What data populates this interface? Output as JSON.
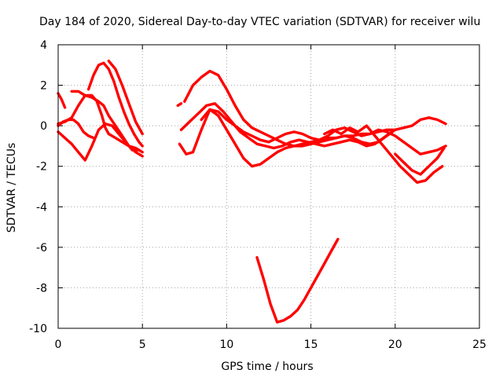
{
  "chart_data": {
    "type": "line",
    "title": "Day 184 of 2020, Sidereal Day-to-day VTEC variation (SDTVAR) for receiver wilu",
    "xlabel": "GPS time / hours",
    "ylabel": "SDTVAR / TECUs",
    "xlim": [
      0,
      25
    ],
    "ylim": [
      -10,
      4
    ],
    "xticks": [
      "0",
      "5",
      "10",
      "15",
      "20",
      "25"
    ],
    "yticks": [
      "4",
      "2",
      "0",
      "-2",
      "-4",
      "-6",
      "-8",
      "-10"
    ],
    "xtick_values": [
      0,
      5,
      10,
      15,
      20,
      25
    ],
    "ytick_values": [
      4,
      2,
      0,
      -2,
      -4,
      -6,
      -8,
      -10
    ],
    "grid": true,
    "color": "#ff0000",
    "series": [
      {
        "name": "s1",
        "x": [
          0.0,
          0.2,
          0.4
        ],
        "y": [
          1.6,
          1.3,
          0.9
        ]
      },
      {
        "name": "s2",
        "x": [
          0.0,
          0.4,
          0.8,
          1.2,
          1.6,
          2.0,
          2.3,
          2.6,
          2.8,
          3.0,
          3.4,
          3.8,
          4.2,
          4.6,
          5.0
        ],
        "y": [
          0.1,
          0.2,
          0.4,
          1.0,
          1.5,
          1.5,
          1.2,
          0.5,
          -0.1,
          -0.4,
          -0.6,
          -0.8,
          -1.0,
          -1.1,
          -1.3
        ]
      },
      {
        "name": "s3",
        "x": [
          0.0,
          0.4,
          0.8,
          1.2,
          1.6,
          2.0,
          2.4,
          2.8,
          3.2,
          3.6,
          4.0,
          4.4,
          4.8
        ],
        "y": [
          -0.3,
          -0.6,
          -0.9,
          -1.3,
          -1.7,
          -1.0,
          -0.2,
          0.1,
          0.0,
          -0.4,
          -0.8,
          -1.2,
          -1.2
        ]
      },
      {
        "name": "s4",
        "x": [
          0.0,
          0.3,
          0.6,
          0.9,
          1.2,
          1.5,
          1.8,
          2.1
        ],
        "y": [
          0.0,
          0.2,
          0.3,
          0.3,
          0.1,
          -0.3,
          -0.5,
          -0.6
        ]
      },
      {
        "name": "s5",
        "x": [
          0.8,
          1.2,
          1.6,
          2.0,
          2.4,
          2.7,
          3.0,
          3.4,
          3.8,
          4.2,
          4.6,
          5.0
        ],
        "y": [
          1.7,
          1.7,
          1.5,
          1.4,
          1.2,
          1.0,
          0.5,
          0.0,
          -0.5,
          -1.0,
          -1.3,
          -1.5
        ]
      },
      {
        "name": "s6",
        "x": [
          1.8,
          2.1,
          2.4,
          2.7,
          3.0,
          3.3,
          3.6,
          3.9,
          4.2,
          4.5,
          4.8,
          5.0
        ],
        "y": [
          1.8,
          2.5,
          3.0,
          3.1,
          2.8,
          2.2,
          1.4,
          0.7,
          0.1,
          -0.4,
          -0.8,
          -1.0
        ]
      },
      {
        "name": "s7",
        "x": [
          3.0,
          3.4,
          3.8,
          4.2,
          4.6,
          5.0
        ],
        "y": [
          3.2,
          2.8,
          2.0,
          1.1,
          0.2,
          -0.4
        ]
      },
      {
        "name": "s8",
        "x": [
          7.1,
          7.3
        ],
        "y": [
          1.0,
          1.1
        ]
      },
      {
        "name": "s9",
        "x": [
          7.5,
          8.0,
          8.5,
          9.0,
          9.5,
          10.0,
          10.5,
          11.0,
          11.5,
          12.0,
          12.5,
          13.0,
          13.5,
          14.0,
          14.5,
          15.0,
          15.5,
          16.0,
          16.5,
          17.0,
          17.5,
          18.0,
          18.5,
          19.0,
          19.5,
          20.0,
          20.5,
          21.0,
          21.5,
          22.0,
          22.5,
          23.0
        ],
        "y": [
          1.2,
          2.0,
          2.4,
          2.7,
          2.5,
          1.8,
          1.0,
          0.3,
          -0.1,
          -0.3,
          -0.5,
          -0.7,
          -0.9,
          -1.0,
          -1.0,
          -0.9,
          -0.8,
          -0.7,
          -0.6,
          -0.5,
          -0.5,
          -0.4,
          -0.4,
          -0.3,
          -0.2,
          -0.2,
          -0.1,
          0.0,
          0.3,
          0.4,
          0.3,
          0.1
        ]
      },
      {
        "name": "s10",
        "x": [
          7.2,
          7.6,
          8.0,
          8.5,
          9.0,
          9.5,
          10.0,
          10.5,
          11.0,
          11.5,
          12.0,
          12.5,
          13.0,
          13.5,
          14.0,
          14.5,
          15.0,
          15.5,
          16.0,
          16.5,
          17.0,
          17.5,
          18.0,
          18.5,
          19.0,
          19.5,
          20.0
        ],
        "y": [
          -0.9,
          -1.4,
          -1.3,
          -0.2,
          0.8,
          0.5,
          -0.2,
          -0.9,
          -1.6,
          -2.0,
          -1.9,
          -1.6,
          -1.3,
          -1.1,
          -1.0,
          -0.9,
          -0.8,
          -0.7,
          -0.6,
          -0.6,
          -0.5,
          -0.6,
          -0.8,
          -0.9,
          -0.8,
          -0.5,
          -0.2
        ]
      },
      {
        "name": "s11",
        "x": [
          7.3,
          7.8,
          8.3,
          8.8,
          9.3,
          9.8,
          10.3,
          10.8,
          11.3,
          11.8,
          12.3,
          12.8,
          13.3,
          13.8,
          14.3,
          14.8,
          15.3,
          15.8,
          16.3,
          16.8,
          17.3,
          17.8,
          18.3,
          18.8,
          19.3,
          19.8
        ],
        "y": [
          -0.2,
          0.2,
          0.6,
          1.0,
          1.1,
          0.7,
          0.2,
          -0.3,
          -0.6,
          -0.9,
          -1.0,
          -1.1,
          -1.0,
          -0.8,
          -0.7,
          -0.8,
          -0.9,
          -1.0,
          -0.9,
          -0.8,
          -0.7,
          -0.8,
          -1.0,
          -0.9,
          -0.6,
          -0.3
        ]
      },
      {
        "name": "s12",
        "x": [
          8.5,
          9.0,
          9.5,
          10.0,
          10.5,
          11.0,
          11.5,
          12.0,
          12.5,
          13.0,
          13.5,
          14.0,
          14.5,
          15.0,
          15.5,
          16.0,
          16.5,
          17.0,
          17.5,
          18.0,
          18.5,
          19.0,
          19.5,
          20.0,
          20.5,
          21.0,
          21.5,
          22.0,
          22.5,
          23.0
        ],
        "y": [
          0.3,
          0.8,
          0.7,
          0.3,
          0.0,
          -0.3,
          -0.5,
          -0.7,
          -0.8,
          -0.6,
          -0.4,
          -0.3,
          -0.4,
          -0.6,
          -0.7,
          -0.5,
          -0.2,
          -0.1,
          -0.3,
          -0.5,
          -0.4,
          -0.2,
          -0.3,
          -0.5,
          -0.8,
          -1.1,
          -1.4,
          -1.3,
          -1.2,
          -1.0
        ]
      },
      {
        "name": "s13",
        "x": [
          15.8,
          16.3,
          16.8,
          17.3,
          17.8,
          18.3,
          18.8,
          19.3,
          19.8,
          20.3,
          20.8,
          21.3,
          21.8,
          22.3,
          22.8
        ],
        "y": [
          -0.4,
          -0.2,
          -0.4,
          -0.1,
          -0.3,
          0.0,
          -0.5,
          -1.0,
          -1.5,
          -2.0,
          -2.4,
          -2.8,
          -2.7,
          -2.3,
          -2.0
        ]
      },
      {
        "name": "s14",
        "x": [
          20.0,
          20.5,
          21.0,
          21.5,
          22.0,
          22.5,
          22.9
        ],
        "y": [
          -1.4,
          -1.8,
          -2.2,
          -2.4,
          -2.0,
          -1.6,
          -1.1
        ]
      },
      {
        "name": "s15",
        "x": [
          11.8,
          12.2,
          12.6,
          13.0,
          13.4,
          13.8,
          14.2,
          14.6,
          15.0,
          15.4,
          15.8,
          16.2,
          16.6
        ],
        "y": [
          -6.5,
          -7.6,
          -8.8,
          -9.7,
          -9.6,
          -9.4,
          -9.1,
          -8.6,
          -8.0,
          -7.4,
          -6.8,
          -6.2,
          -5.6
        ]
      }
    ]
  }
}
